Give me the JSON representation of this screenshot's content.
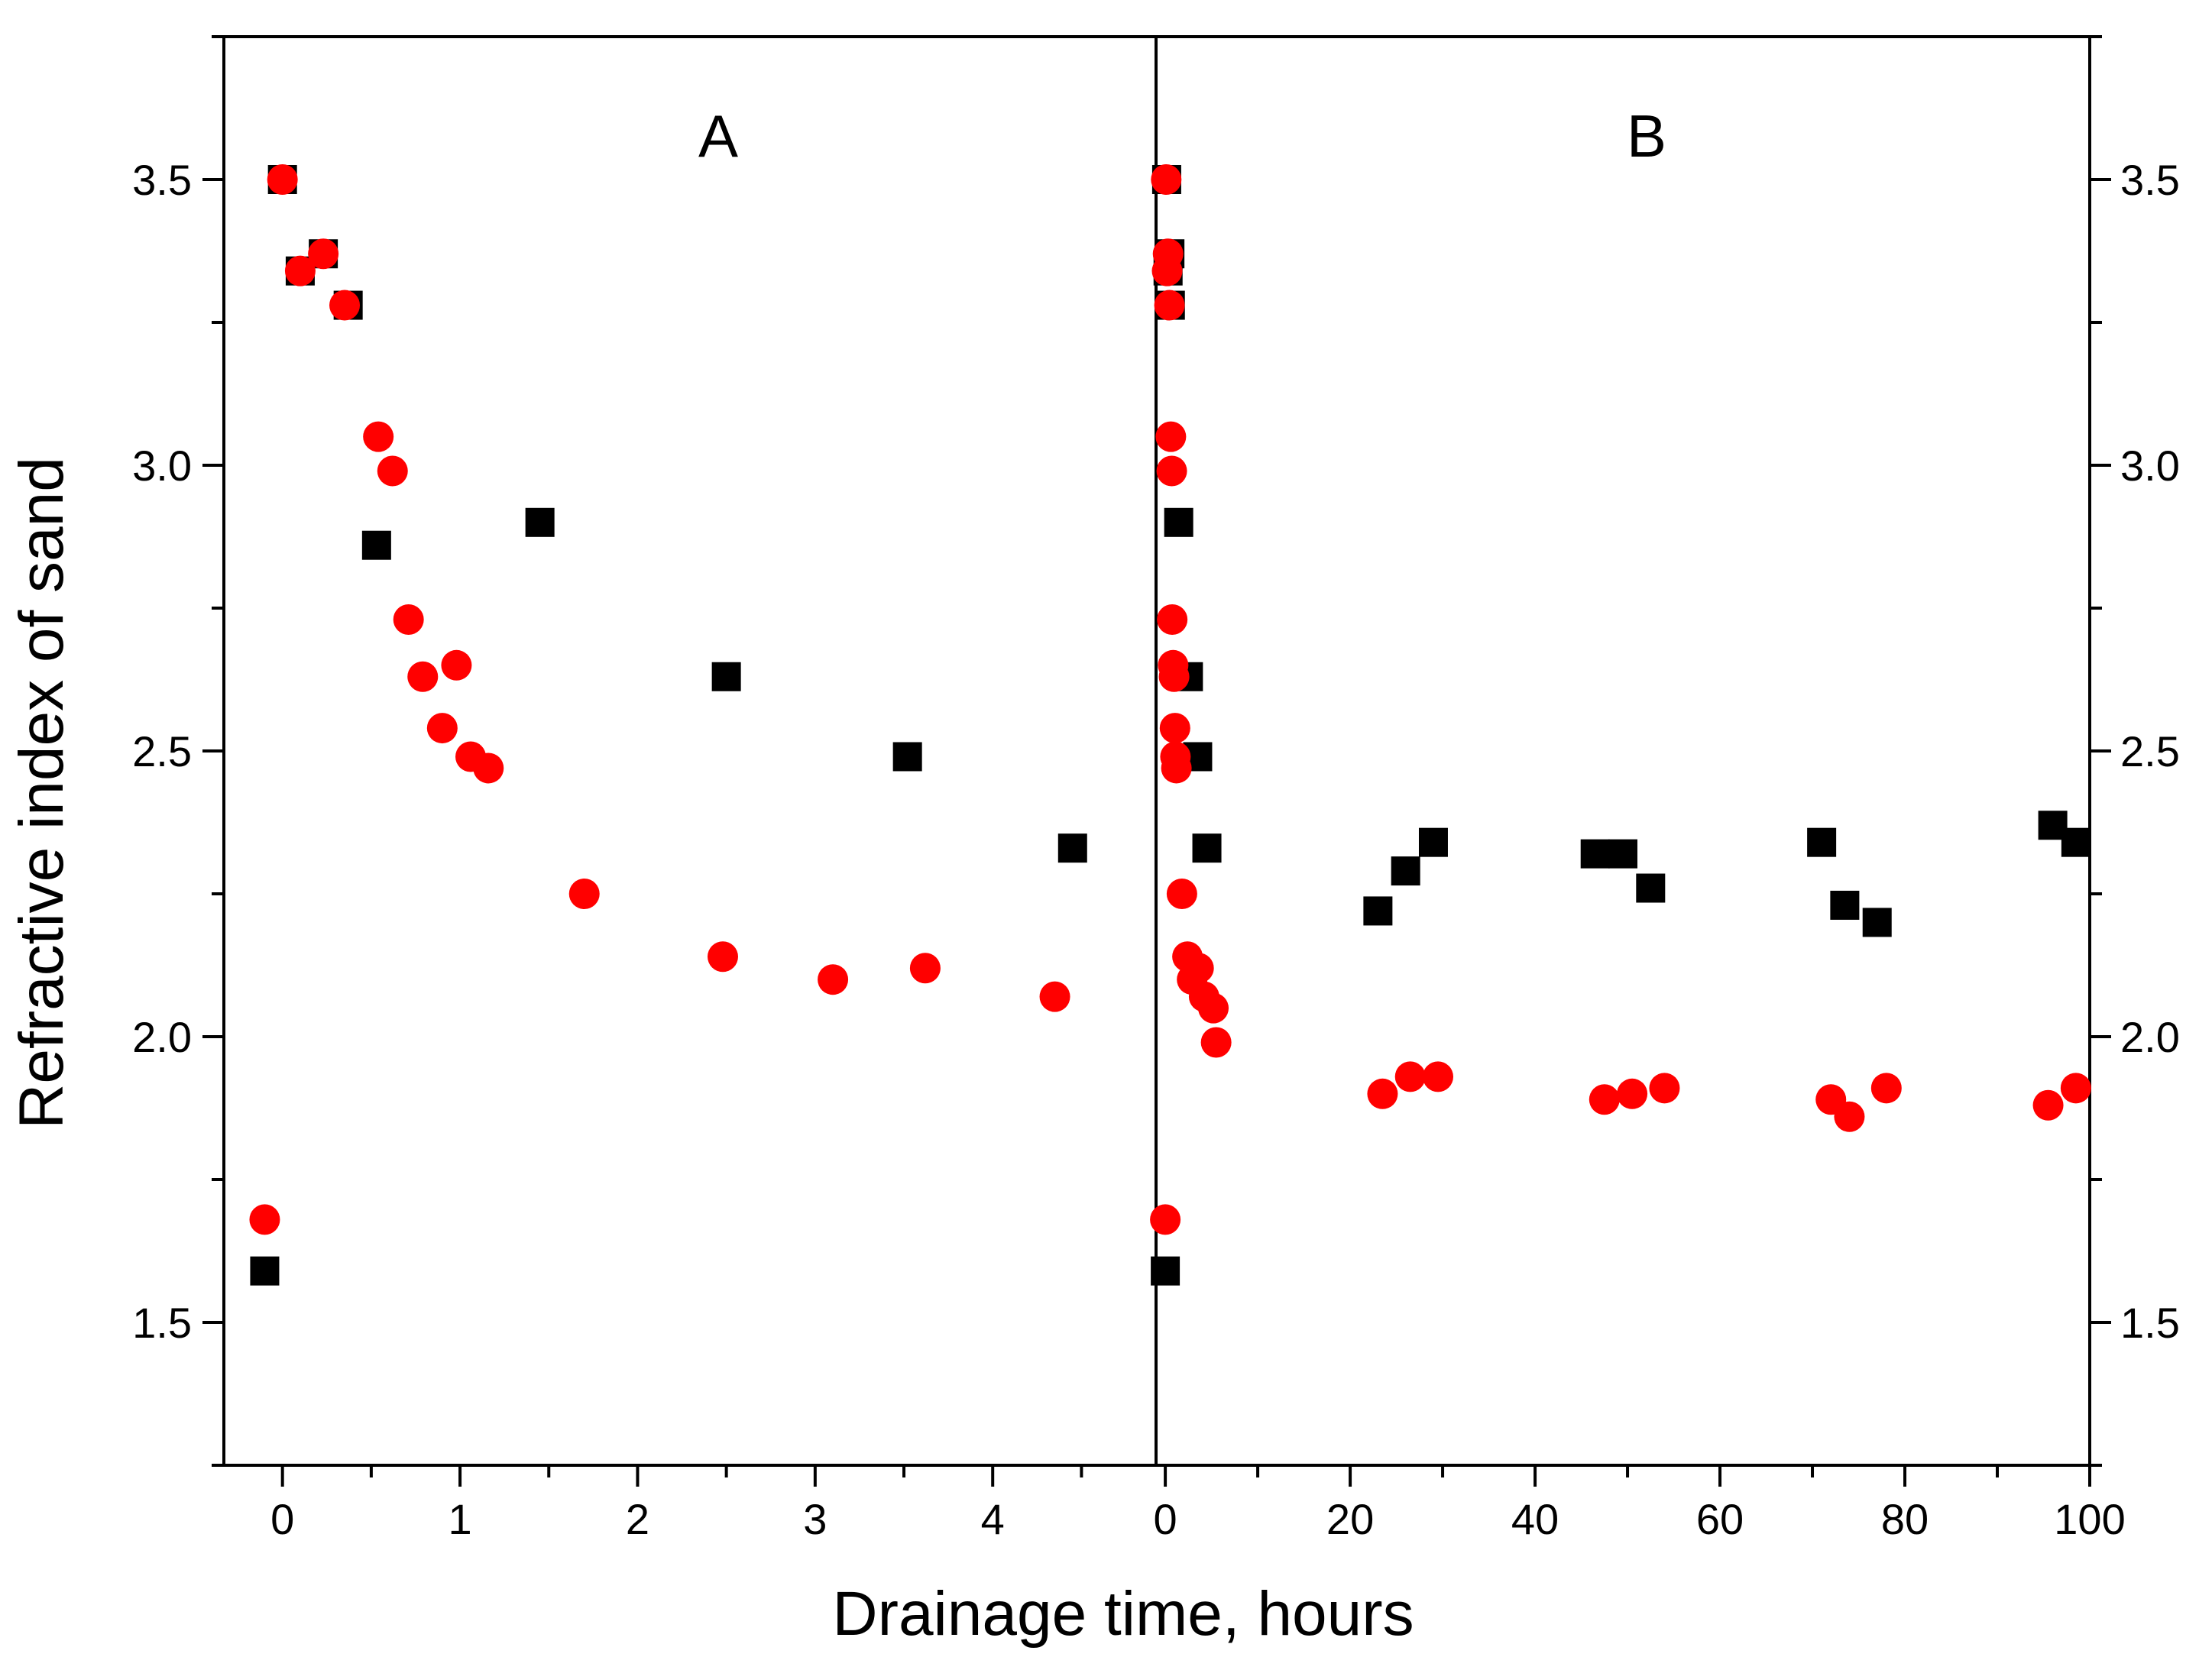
{
  "chart_data": {
    "type": "scatter",
    "title": "",
    "xlabel": "Drainage time, hours",
    "ylabel": "Refractive index of sand",
    "ylim": [
      1.25,
      3.75
    ],
    "yticks": [
      1.5,
      2.0,
      2.5,
      3.0,
      3.5
    ],
    "ytick_labels": [
      "1.5",
      "2.0",
      "2.5",
      "3.0",
      "3.5"
    ],
    "colors": {
      "series1": "#000000",
      "series2": "#ff0000",
      "axis": "#000000"
    },
    "panels": [
      {
        "label": "A",
        "xlim": [
          -0.33,
          4.92
        ],
        "xticks": [
          0,
          1,
          2,
          3,
          4
        ],
        "xtick_labels": [
          "0",
          "1",
          "2",
          "3",
          "4"
        ],
        "series": [
          {
            "name": "series1",
            "marker": "square",
            "color": "#000000",
            "x": [
              -0.1,
              0.0,
              0.1,
              0.23,
              0.37,
              0.53,
              1.45,
              2.5,
              3.52,
              4.45
            ],
            "y": [
              1.59,
              3.5,
              3.34,
              3.37,
              3.28,
              2.86,
              2.9,
              2.63,
              2.49,
              2.33
            ]
          },
          {
            "name": "series2",
            "marker": "circle",
            "color": "#ff0000",
            "x": [
              -0.1,
              0.0,
              0.1,
              0.23,
              0.35,
              0.54,
              0.62,
              0.71,
              0.79,
              0.9,
              0.98,
              1.06,
              1.16,
              1.7,
              2.48,
              3.1,
              3.62,
              4.35
            ],
            "y": [
              1.68,
              3.5,
              3.34,
              3.37,
              3.28,
              3.05,
              2.99,
              2.73,
              2.63,
              2.54,
              2.65,
              2.49,
              2.47,
              2.25,
              2.14,
              2.1,
              2.12,
              2.07
            ]
          }
        ]
      },
      {
        "label": "B",
        "xlim": [
          -1,
          100
        ],
        "xticks": [
          0,
          20,
          40,
          60,
          80,
          100
        ],
        "xtick_labels": [
          "0",
          "20",
          "40",
          "60",
          "80",
          "100"
        ],
        "series": [
          {
            "name": "series1",
            "marker": "square",
            "color": "#000000",
            "x": [
              0,
              0.15,
              0.3,
              0.5,
              0.55,
              1.45,
              2.5,
              3.5,
              4.5,
              23,
              26,
              29,
              46.5,
              49.5,
              52.5,
              71,
              73.5,
              77,
              96,
              98.5
            ],
            "y": [
              1.59,
              3.5,
              3.34,
              3.37,
              3.28,
              2.9,
              2.63,
              2.49,
              2.33,
              2.22,
              2.29,
              2.34,
              2.32,
              2.32,
              2.26,
              2.34,
              2.23,
              2.2,
              2.37,
              2.34
            ]
          },
          {
            "name": "series2",
            "marker": "circle",
            "color": "#ff0000",
            "x": [
              0,
              0.1,
              0.2,
              0.3,
              0.45,
              0.6,
              0.7,
              0.75,
              0.85,
              0.95,
              1.05,
              1.1,
              1.2,
              1.8,
              2.4,
              2.9,
              3.6,
              4.2,
              5.2,
              5.5,
              23.5,
              26.5,
              29.5,
              47.5,
              50.5,
              54,
              72,
              74,
              78,
              95.5,
              98.5
            ],
            "y": [
              1.68,
              3.5,
              3.34,
              3.37,
              3.28,
              3.05,
              2.99,
              2.73,
              2.65,
              2.63,
              2.54,
              2.49,
              2.47,
              2.25,
              2.14,
              2.1,
              2.12,
              2.07,
              2.05,
              1.99,
              1.9,
              1.93,
              1.93,
              1.89,
              1.9,
              1.91,
              1.89,
              1.86,
              1.91,
              1.88,
              1.91
            ]
          }
        ]
      }
    ]
  }
}
